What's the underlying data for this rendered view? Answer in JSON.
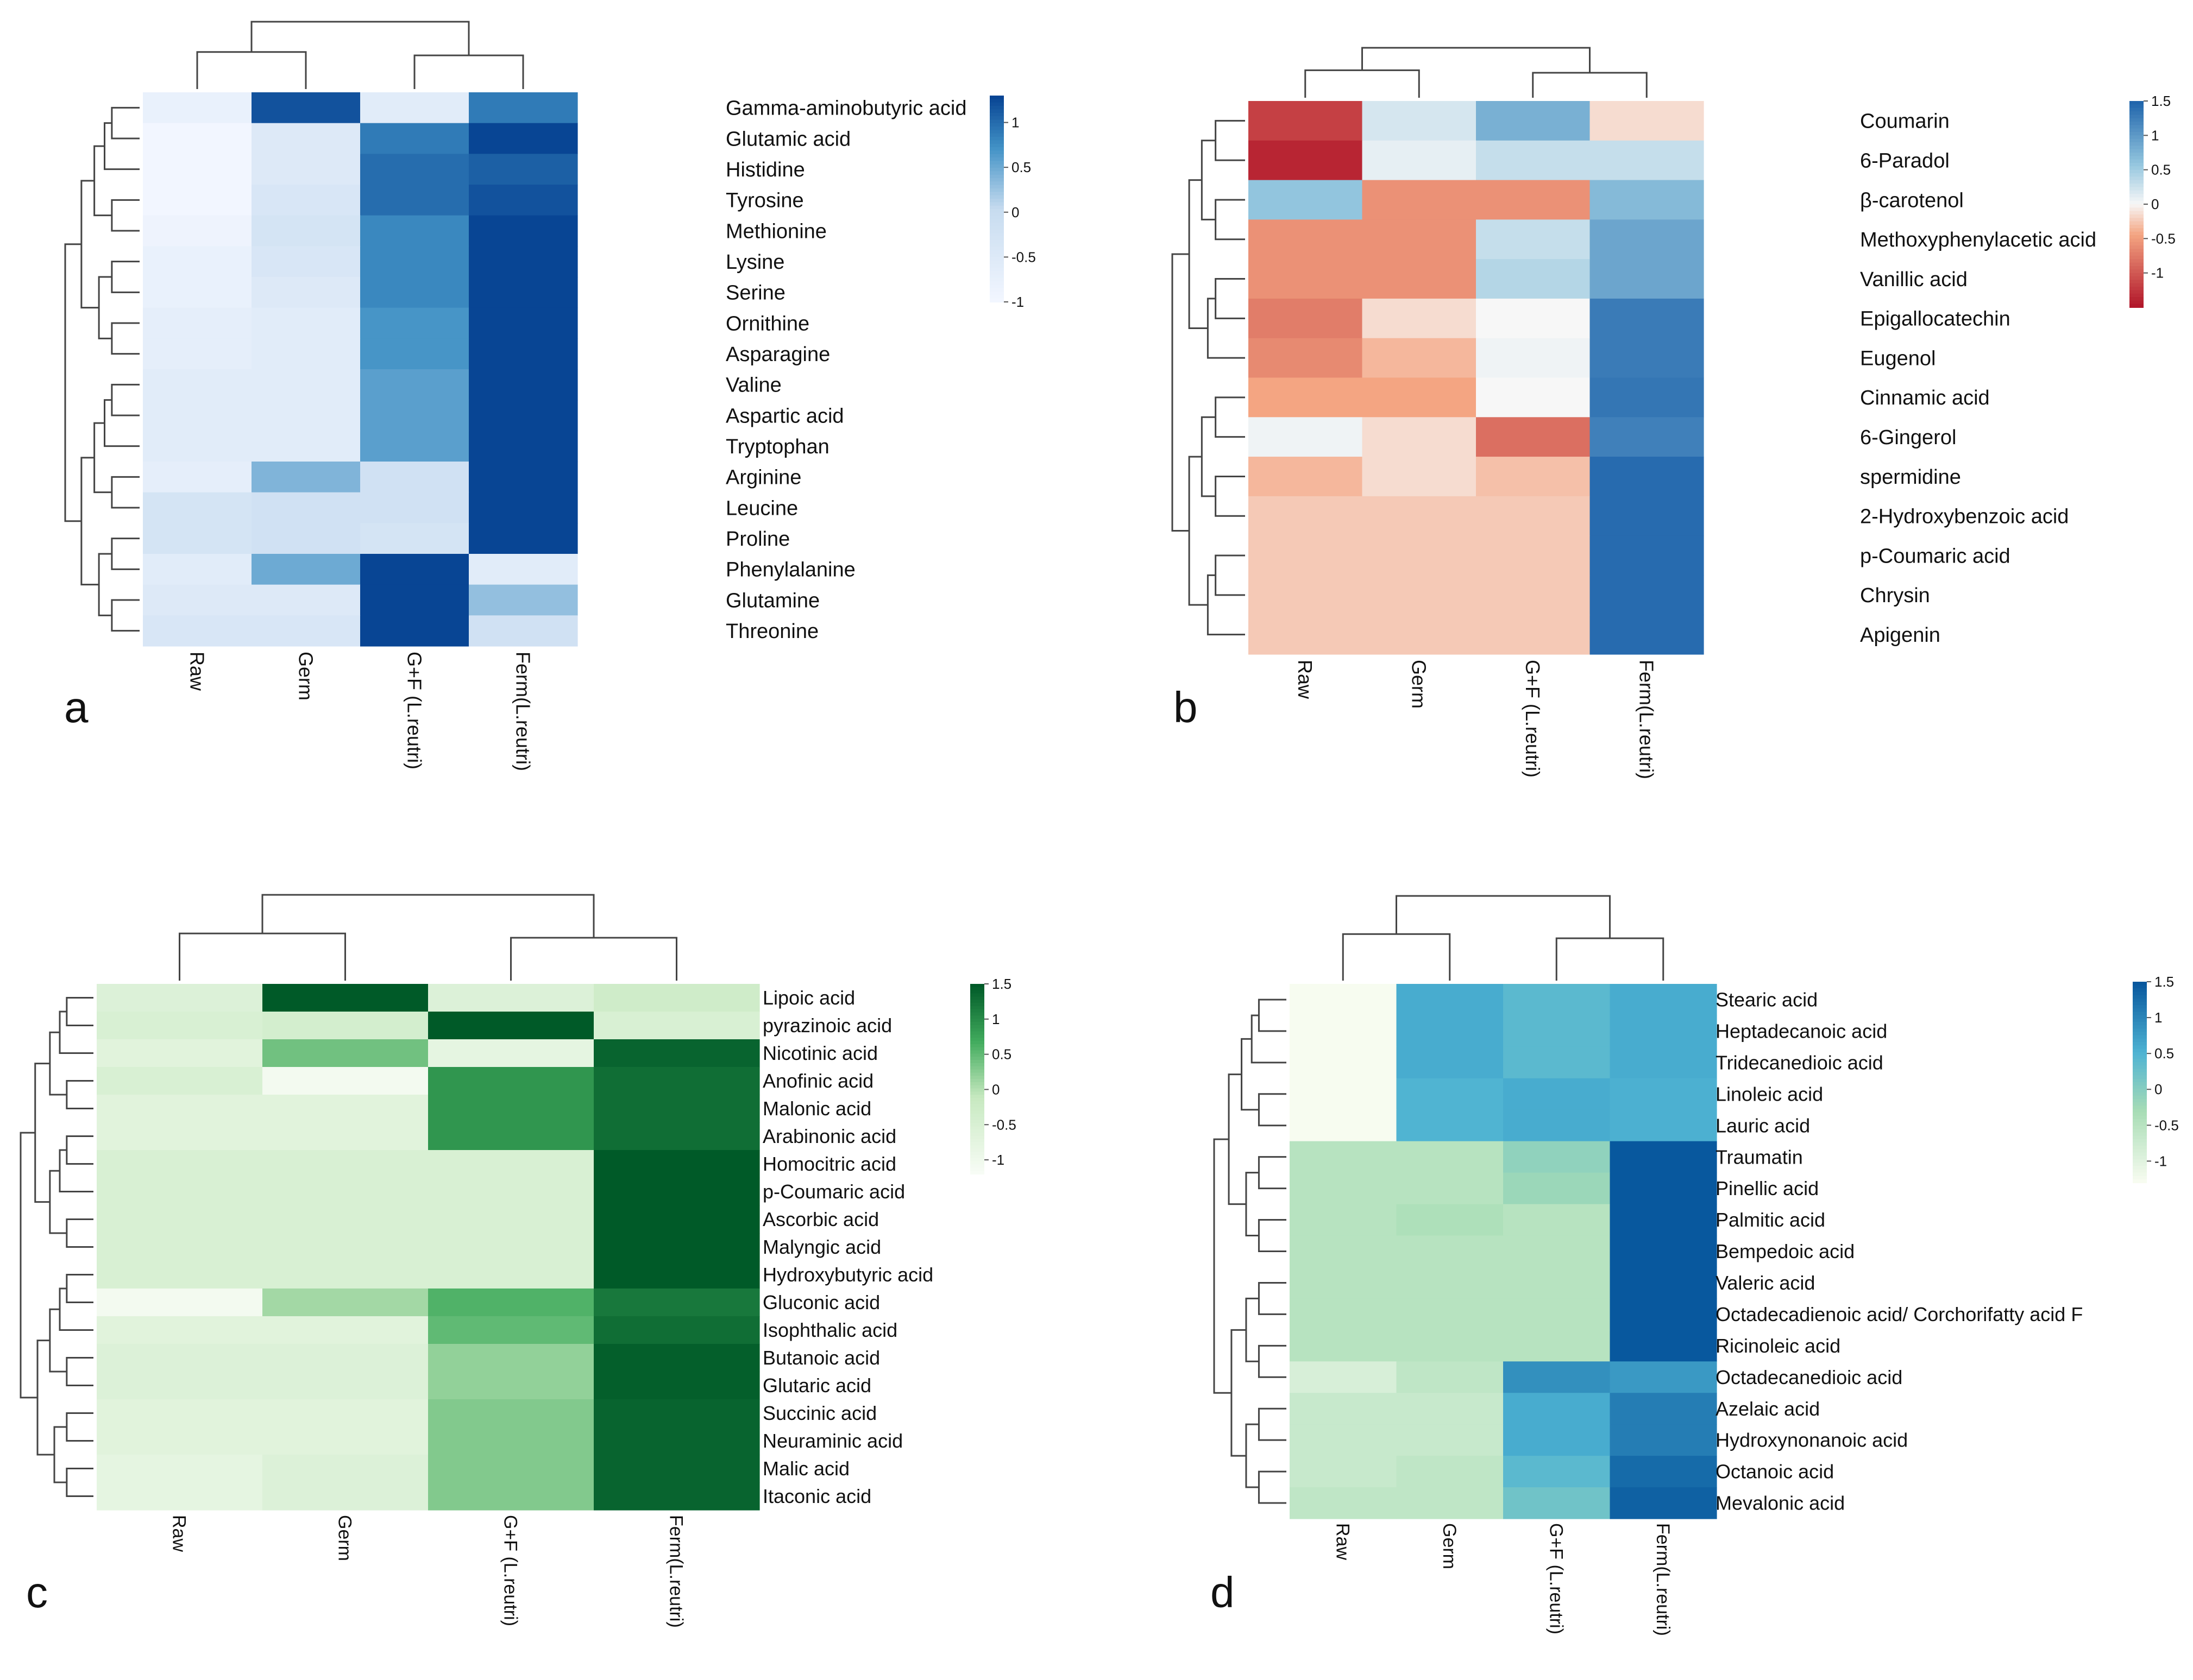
{
  "chart_data": [
    {
      "type": "heatmap",
      "panel_label": "a",
      "palette": "blue",
      "columns": [
        "Raw",
        "Germ",
        "G+F (L.reutri)",
        "Ferm(L.reutri)"
      ],
      "rows": [
        "Gamma-aminobutyric acid",
        "Glutamic acid",
        "Histidine",
        "Tyrosine",
        "Methionine",
        "Lysine",
        "Serine",
        "Ornithine",
        "Asparagine",
        "Valine",
        "Aspartic acid",
        "Tryptophan",
        "Arginine",
        "Leucine",
        "Proline",
        "Phenylalanine",
        "Glutamine",
        "Threonine"
      ],
      "values": [
        [
          -0.8,
          1.2,
          -0.6,
          0.9
        ],
        [
          -1.0,
          -0.5,
          0.9,
          1.3
        ],
        [
          -1.0,
          -0.5,
          1.0,
          1.1
        ],
        [
          -1.0,
          -0.4,
          1.0,
          1.2
        ],
        [
          -0.9,
          -0.3,
          0.8,
          1.4
        ],
        [
          -0.8,
          -0.4,
          0.8,
          1.4
        ],
        [
          -0.8,
          -0.5,
          0.8,
          1.4
        ],
        [
          -0.7,
          -0.6,
          0.7,
          1.4
        ],
        [
          -0.7,
          -0.6,
          0.7,
          1.4
        ],
        [
          -0.6,
          -0.6,
          0.6,
          1.5
        ],
        [
          -0.6,
          -0.6,
          0.6,
          1.5
        ],
        [
          -0.6,
          -0.6,
          0.6,
          1.5
        ],
        [
          -0.7,
          0.4,
          -0.2,
          1.5
        ],
        [
          -0.3,
          -0.2,
          -0.2,
          1.5
        ],
        [
          -0.3,
          -0.2,
          -0.3,
          1.5
        ],
        [
          -0.6,
          0.5,
          1.4,
          -0.6
        ],
        [
          -0.5,
          -0.5,
          1.4,
          0.3
        ],
        [
          -0.4,
          -0.4,
          1.5,
          -0.2
        ]
      ],
      "legend": {
        "ticks": [
          1,
          0.5,
          0,
          -0.5,
          -1
        ],
        "tick_labels": [
          "1",
          "0.5",
          "0",
          "-0.5",
          "-1"
        ],
        "range": [
          -1,
          1.3
        ]
      }
    },
    {
      "type": "heatmap",
      "panel_label": "b",
      "palette": "redblue",
      "columns": [
        "Raw",
        "Germ",
        "G+F (L.reutri)",
        "Ferm(L.reutri)"
      ],
      "rows": [
        "Coumarin",
        "6-Paradol",
        "β-carotenol",
        "Methoxyphenylacetic acid",
        "Vanillic acid",
        "Epigallocatechin",
        "Eugenol",
        "Cinnamic acid",
        "6-Gingerol",
        "spermidine",
        "2-Hydroxybenzoic acid",
        "p-Coumaric acid",
        "Chrysin",
        "Apigenin"
      ],
      "values": [
        [
          -1.2,
          0.2,
          0.8,
          -0.15
        ],
        [
          -1.4,
          0.1,
          0.3,
          0.3
        ],
        [
          0.6,
          -0.6,
          -0.6,
          0.7
        ],
        [
          -0.6,
          -0.6,
          0.3,
          0.9
        ],
        [
          -0.6,
          -0.6,
          0.4,
          0.9
        ],
        [
          -0.75,
          -0.15,
          0.0,
          1.3
        ],
        [
          -0.65,
          -0.35,
          0.05,
          1.3
        ],
        [
          -0.45,
          -0.45,
          0.0,
          1.35
        ],
        [
          0.05,
          -0.15,
          -0.85,
          1.25
        ],
        [
          -0.35,
          -0.15,
          -0.3,
          1.45
        ],
        [
          -0.25,
          -0.25,
          -0.25,
          1.45
        ],
        [
          -0.25,
          -0.25,
          -0.25,
          1.45
        ],
        [
          -0.25,
          -0.25,
          -0.25,
          1.45
        ],
        [
          -0.25,
          -0.25,
          -0.25,
          1.45
        ]
      ],
      "legend": {
        "ticks": [
          1.5,
          1,
          0.5,
          0,
          -0.5,
          -1
        ],
        "tick_labels": [
          "1.5",
          "1",
          "0.5",
          "0",
          "-0.5",
          "-1"
        ],
        "range": [
          -1.5,
          1.5
        ]
      }
    },
    {
      "type": "heatmap",
      "panel_label": "c",
      "palette": "green",
      "columns": [
        "Raw",
        "Germ",
        "G+F (L.reutri)",
        "Ferm(L.reutri)"
      ],
      "rows": [
        "Lipoic acid",
        "pyrazinoic acid",
        "Nicotinic acid",
        "Anofinic acid",
        "Malonic acid",
        "Arabinonic acid",
        "Homocitric acid",
        "p-Coumaric acid",
        "Ascorbic acid",
        "Malyngic acid",
        "Hydroxybutyric acid",
        "Gluconic acid",
        "Isophthalic acid",
        "Butanoic acid",
        "Glutaric acid",
        "Succinic acid",
        "Neuraminic acid",
        "Malic acid",
        "Itaconic acid"
      ],
      "values": [
        [
          -0.6,
          1.5,
          -0.6,
          -0.3
        ],
        [
          -0.5,
          -0.4,
          1.5,
          -0.5
        ],
        [
          -0.7,
          0.4,
          -0.8,
          1.4
        ],
        [
          -0.5,
          -1.1,
          0.9,
          1.3
        ],
        [
          -0.7,
          -0.7,
          0.9,
          1.3
        ],
        [
          -0.7,
          -0.7,
          0.9,
          1.3
        ],
        [
          -0.5,
          -0.5,
          -0.5,
          1.5
        ],
        [
          -0.5,
          -0.5,
          -0.5,
          1.5
        ],
        [
          -0.5,
          -0.5,
          -0.5,
          1.5
        ],
        [
          -0.5,
          -0.5,
          -0.5,
          1.5
        ],
        [
          -0.5,
          -0.5,
          -0.5,
          1.5
        ],
        [
          -1.1,
          0.1,
          0.6,
          1.2
        ],
        [
          -0.7,
          -0.7,
          0.5,
          1.3
        ],
        [
          -0.6,
          -0.6,
          0.2,
          1.45
        ],
        [
          -0.6,
          -0.6,
          0.2,
          1.45
        ],
        [
          -0.7,
          -0.7,
          0.3,
          1.4
        ],
        [
          -0.7,
          -0.7,
          0.3,
          1.4
        ],
        [
          -0.8,
          -0.6,
          0.3,
          1.4
        ],
        [
          -0.8,
          -0.6,
          0.3,
          1.4
        ]
      ],
      "legend": {
        "ticks": [
          1.5,
          1,
          0.5,
          0,
          -0.5,
          -1
        ],
        "tick_labels": [
          "1.5",
          "1",
          "0.5",
          "0",
          "-0.5",
          "-1"
        ],
        "range": [
          -1.2,
          1.5
        ]
      }
    },
    {
      "type": "heatmap",
      "panel_label": "d",
      "palette": "greenblue",
      "columns": [
        "Raw",
        "Germ",
        "G+F (L.reutri)",
        "Ferm(L.reutri)"
      ],
      "rows": [
        "Stearic acid",
        "Heptadecanoic acid",
        "Tridecanedioic acid",
        "Linoleic acid",
        "Lauric acid",
        "Traumatin",
        "Pinellic acid",
        "Palmitic acid",
        "Bempedoic acid",
        "Valeric acid",
        "Octadecadienoic acid/ Corchorifatty acid F",
        "Ricinoleic acid",
        "Octadecanedioic acid",
        "Azelaic acid",
        "Hydroxynonanoic acid",
        "Octanoic acid",
        "Mevalonic acid"
      ],
      "values": [
        [
          -1.3,
          0.6,
          0.4,
          0.6
        ],
        [
          -1.3,
          0.6,
          0.4,
          0.6
        ],
        [
          -1.3,
          0.6,
          0.4,
          0.6
        ],
        [
          -1.3,
          0.5,
          0.6,
          0.55
        ],
        [
          -1.3,
          0.5,
          0.6,
          0.55
        ],
        [
          -0.5,
          -0.5,
          -0.1,
          1.5
        ],
        [
          -0.5,
          -0.5,
          -0.2,
          1.5
        ],
        [
          -0.5,
          -0.4,
          -0.5,
          1.5
        ],
        [
          -0.5,
          -0.5,
          -0.5,
          1.5
        ],
        [
          -0.5,
          -0.5,
          -0.5,
          1.5
        ],
        [
          -0.5,
          -0.5,
          -0.5,
          1.5
        ],
        [
          -0.5,
          -0.5,
          -0.5,
          1.5
        ],
        [
          -0.9,
          -0.6,
          0.9,
          0.8
        ],
        [
          -0.7,
          -0.7,
          0.6,
          1.1
        ],
        [
          -0.7,
          -0.7,
          0.6,
          1.1
        ],
        [
          -0.7,
          -0.6,
          0.4,
          1.3
        ],
        [
          -0.6,
          -0.6,
          0.2,
          1.4
        ]
      ],
      "legend": {
        "ticks": [
          1.5,
          1,
          0.5,
          0,
          -0.5,
          -1
        ],
        "tick_labels": [
          "1.5",
          "1",
          "0.5",
          "0",
          "-0.5",
          "-1"
        ],
        "range": [
          -1.3,
          1.5
        ]
      }
    }
  ]
}
